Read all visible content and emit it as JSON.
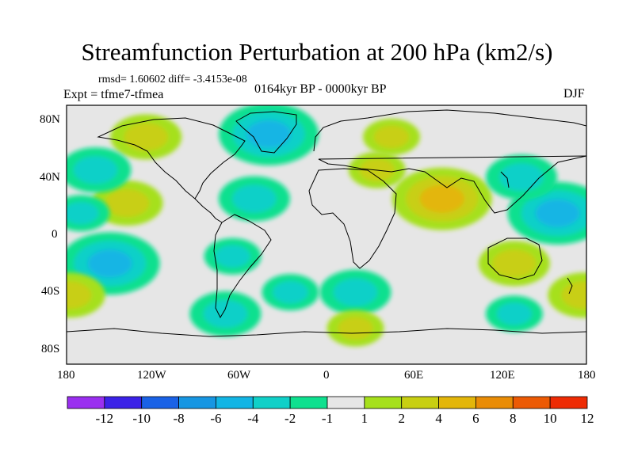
{
  "title": "Streamfunction Perturbation at 200 hPa (km2/s)",
  "stats": "rmsd= 1.60602 diff= -3.4153e-08",
  "expt": "Expt = tfme7-tfmea",
  "period": "0164kyr BP - 0000kyr BP",
  "season": "DJF",
  "axes": {
    "lat_labels": [
      "80N",
      "40N",
      "0",
      "40S",
      "80S"
    ],
    "lon_labels": [
      "180",
      "120W",
      "60W",
      "0",
      "60E",
      "120E",
      "180"
    ]
  },
  "colorbar": {
    "labels": [
      "-12",
      "-10",
      "-8",
      "-6",
      "-4",
      "-2",
      "-1",
      "1",
      "2",
      "4",
      "6",
      "8",
      "10",
      "12"
    ],
    "colors": [
      "#9a2ff0",
      "#3b22e8",
      "#1a62e6",
      "#1796e2",
      "#12b5e4",
      "#10d0c8",
      "#0ee08f",
      "#e6e6e6",
      "#a6e01c",
      "#c8cf12",
      "#e3b60a",
      "#e98c06",
      "#ec5a05",
      "#ee2b04"
    ]
  },
  "chart_data": {
    "type": "heatmap",
    "title": "Streamfunction Perturbation at 200 hPa (km2/s)",
    "xlim": [
      -180,
      180
    ],
    "ylim": [
      -90,
      90
    ],
    "levels": [
      -12,
      -10,
      -8,
      -6,
      -4,
      -2,
      -1,
      1,
      2,
      4,
      6,
      8,
      10,
      12
    ],
    "anomalies": [
      {
        "lon": -125,
        "lat": 68,
        "value": 3
      },
      {
        "lon": -138,
        "lat": 22,
        "value": 3
      },
      {
        "lon": -160,
        "lat": 45,
        "value": -3
      },
      {
        "lon": -150,
        "lat": -20,
        "value": -5
      },
      {
        "lon": -170,
        "lat": 15,
        "value": -2
      },
      {
        "lon": -40,
        "lat": 70,
        "value": -5
      },
      {
        "lon": -50,
        "lat": 25,
        "value": -3
      },
      {
        "lon": -65,
        "lat": -15,
        "value": -2
      },
      {
        "lon": -25,
        "lat": -40,
        "value": -2
      },
      {
        "lon": -70,
        "lat": -55,
        "value": -3
      },
      {
        "lon": 20,
        "lat": -40,
        "value": -3
      },
      {
        "lon": 20,
        "lat": -65,
        "value": 2
      },
      {
        "lon": 45,
        "lat": 68,
        "value": 2
      },
      {
        "lon": 80,
        "lat": 25,
        "value": 5
      },
      {
        "lon": 35,
        "lat": 45,
        "value": 2
      },
      {
        "lon": 160,
        "lat": 15,
        "value": -5
      },
      {
        "lon": 135,
        "lat": 40,
        "value": -3
      },
      {
        "lon": 130,
        "lat": -20,
        "value": 3
      },
      {
        "lon": 130,
        "lat": -55,
        "value": -2
      },
      {
        "lon": -178,
        "lat": -42,
        "value": 3
      },
      {
        "lon": 178,
        "lat": -42,
        "value": 3
      }
    ]
  }
}
